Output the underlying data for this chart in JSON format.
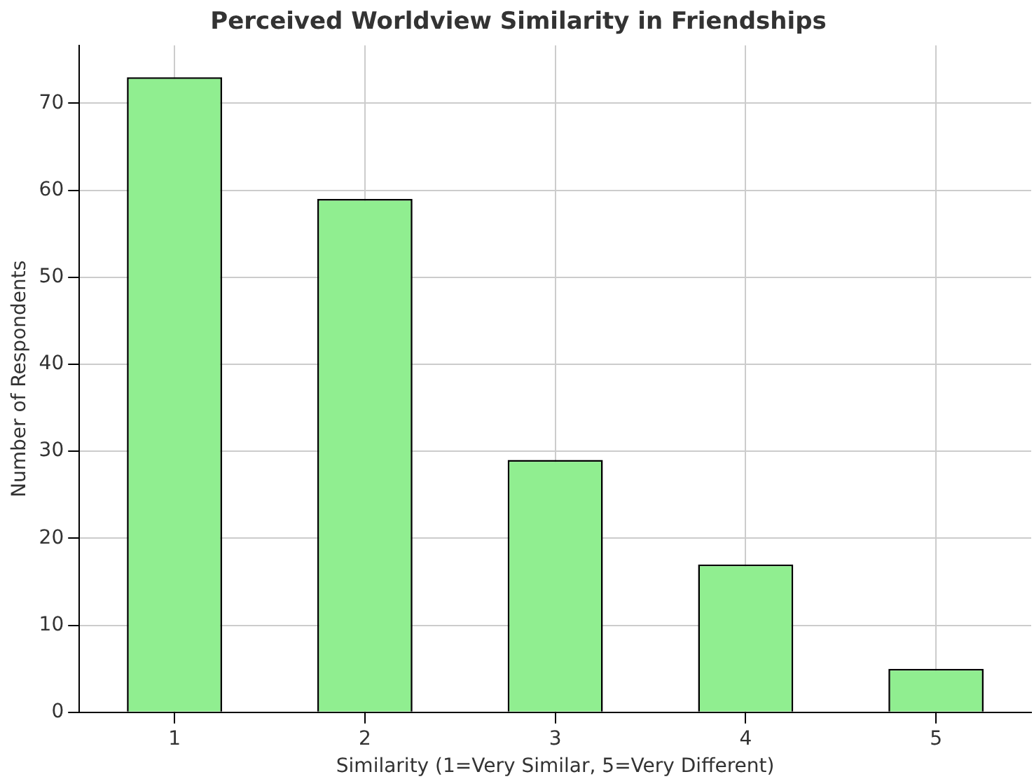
{
  "chart_data": {
    "type": "bar",
    "title": "Perceived Worldview Similarity in Friendships",
    "xlabel": "Similarity (1=Very Similar, 5=Very Different)",
    "ylabel": "Number of Respondents",
    "categories": [
      "1",
      "2",
      "3",
      "4",
      "5"
    ],
    "values": [
      73,
      59,
      29,
      17,
      5
    ],
    "color": "#90ee90",
    "ylim": [
      0,
      76.65
    ],
    "yticks": [
      0,
      10,
      20,
      30,
      40,
      50,
      60,
      70
    ],
    "grid": true
  }
}
